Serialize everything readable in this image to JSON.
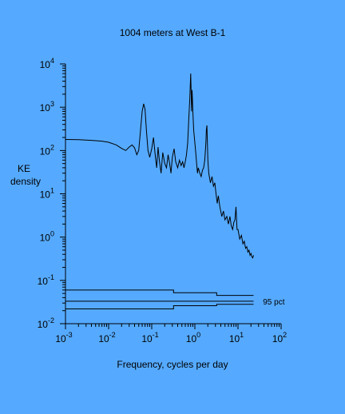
{
  "chart_data": {
    "type": "line",
    "title": "1004 meters at West B-1",
    "xlabel": "Frequency, cycles per day",
    "ylabel_lines": [
      "KE",
      "density"
    ],
    "x_scale": "log",
    "y_scale": "log",
    "xlim": [
      0.001,
      100
    ],
    "ylim": [
      0.01,
      10000
    ],
    "x_ticks": [
      {
        "base": "10",
        "exp": "-3",
        "value": 0.001
      },
      {
        "base": "10",
        "exp": "-2",
        "value": 0.01
      },
      {
        "base": "10",
        "exp": "-1",
        "value": 0.1
      },
      {
        "base": "10",
        "exp": "0",
        "value": 1
      },
      {
        "base": "10",
        "exp": "1",
        "value": 10
      },
      {
        "base": "10",
        "exp": "2",
        "value": 100
      }
    ],
    "y_ticks": [
      {
        "base": "10",
        "exp": "-2",
        "value": 0.01
      },
      {
        "base": "10",
        "exp": "-1",
        "value": 0.1
      },
      {
        "base": "10",
        "exp": "0",
        "value": 1
      },
      {
        "base": "10",
        "exp": "1",
        "value": 10
      },
      {
        "base": "10",
        "exp": "2",
        "value": 100
      },
      {
        "base": "10",
        "exp": "3",
        "value": 1000
      },
      {
        "base": "10",
        "exp": "4",
        "value": 10000
      }
    ],
    "grid": false,
    "line_color": "#000000",
    "background": "#55aaff",
    "series": [
      {
        "values": [
          [
            0.001,
            180
          ],
          [
            0.002,
            178
          ],
          [
            0.004,
            172
          ],
          [
            0.007,
            165
          ],
          [
            0.01,
            155
          ],
          [
            0.015,
            135
          ],
          [
            0.02,
            112
          ],
          [
            0.025,
            100
          ],
          [
            0.03,
            120
          ],
          [
            0.035,
            135
          ],
          [
            0.04,
            115
          ],
          [
            0.045,
            80
          ],
          [
            0.05,
            100
          ],
          [
            0.055,
            300
          ],
          [
            0.06,
            800
          ],
          [
            0.065,
            1200
          ],
          [
            0.07,
            900
          ],
          [
            0.075,
            300
          ],
          [
            0.082,
            100
          ],
          [
            0.09,
            70
          ],
          [
            0.1,
            110
          ],
          [
            0.11,
            200
          ],
          [
            0.12,
            80
          ],
          [
            0.13,
            40
          ],
          [
            0.14,
            120
          ],
          [
            0.15,
            60
          ],
          [
            0.165,
            30
          ],
          [
            0.18,
            90
          ],
          [
            0.2,
            50
          ],
          [
            0.22,
            40
          ],
          [
            0.24,
            80
          ],
          [
            0.26,
            50
          ],
          [
            0.28,
            30
          ],
          [
            0.3,
            70
          ],
          [
            0.33,
            110
          ],
          [
            0.36,
            55
          ],
          [
            0.4,
            40
          ],
          [
            0.44,
            60
          ],
          [
            0.48,
            45
          ],
          [
            0.52,
            55
          ],
          [
            0.56,
            40
          ],
          [
            0.6,
            55
          ],
          [
            0.64,
            80
          ],
          [
            0.68,
            150
          ],
          [
            0.72,
            500
          ],
          [
            0.76,
            1500
          ],
          [
            0.78,
            3000
          ],
          [
            0.8,
            6000
          ],
          [
            0.82,
            2500
          ],
          [
            0.84,
            800
          ],
          [
            0.86,
            2500
          ],
          [
            0.88,
            1500
          ],
          [
            0.9,
            800
          ],
          [
            0.94,
            300
          ],
          [
            1.0,
            150
          ],
          [
            1.05,
            90
          ],
          [
            1.1,
            50
          ],
          [
            1.15,
            30
          ],
          [
            1.2,
            40
          ],
          [
            1.3,
            30
          ],
          [
            1.4,
            25
          ],
          [
            1.5,
            35
          ],
          [
            1.6,
            40
          ],
          [
            1.7,
            60
          ],
          [
            1.8,
            150
          ],
          [
            1.85,
            300
          ],
          [
            1.9,
            380
          ],
          [
            1.95,
            150
          ],
          [
            2.0,
            60
          ],
          [
            2.1,
            30
          ],
          [
            2.3,
            18
          ],
          [
            2.5,
            25
          ],
          [
            2.7,
            15
          ],
          [
            2.9,
            18
          ],
          [
            3.1,
            10
          ],
          [
            3.3,
            6
          ],
          [
            3.5,
            9
          ],
          [
            3.8,
            5
          ],
          [
            4.2,
            3
          ],
          [
            4.6,
            4
          ],
          [
            5.0,
            2.5
          ],
          [
            5.5,
            3
          ],
          [
            6.0,
            2
          ],
          [
            6.5,
            3
          ],
          [
            7.0,
            1.8
          ],
          [
            7.5,
            1.5
          ],
          [
            8.0,
            2.2
          ],
          [
            8.5,
            2.5
          ],
          [
            9.0,
            5
          ],
          [
            9.5,
            1.5
          ],
          [
            10.0,
            1.5
          ],
          [
            11.0,
            0.9
          ],
          [
            12.0,
            1.1
          ],
          [
            13.0,
            0.7
          ],
          [
            14.0,
            0.8
          ],
          [
            15.0,
            0.55
          ],
          [
            16.0,
            0.6
          ],
          [
            17.0,
            0.45
          ],
          [
            18.0,
            0.5
          ],
          [
            19.0,
            0.38
          ],
          [
            20.0,
            0.42
          ],
          [
            21.0,
            0.35
          ],
          [
            22.0,
            0.33
          ],
          [
            23.0,
            0.38
          ]
        ]
      }
    ],
    "annotations": [
      {
        "text": "95 pct",
        "x": 20,
        "y": 0.033
      }
    ],
    "confidence_bands": [
      [
        [
          0.001,
          0.06
        ],
        [
          0.32,
          0.06
        ],
        [
          0.32,
          0.052
        ],
        [
          3.2,
          0.052
        ],
        [
          3.2,
          0.045
        ],
        [
          23,
          0.045
        ]
      ],
      [
        [
          0.001,
          0.033
        ],
        [
          23,
          0.033
        ]
      ],
      [
        [
          0.001,
          0.022
        ],
        [
          0.32,
          0.022
        ],
        [
          0.32,
          0.026
        ],
        [
          3.2,
          0.026
        ],
        [
          3.2,
          0.028
        ],
        [
          23,
          0.028
        ]
      ]
    ]
  }
}
